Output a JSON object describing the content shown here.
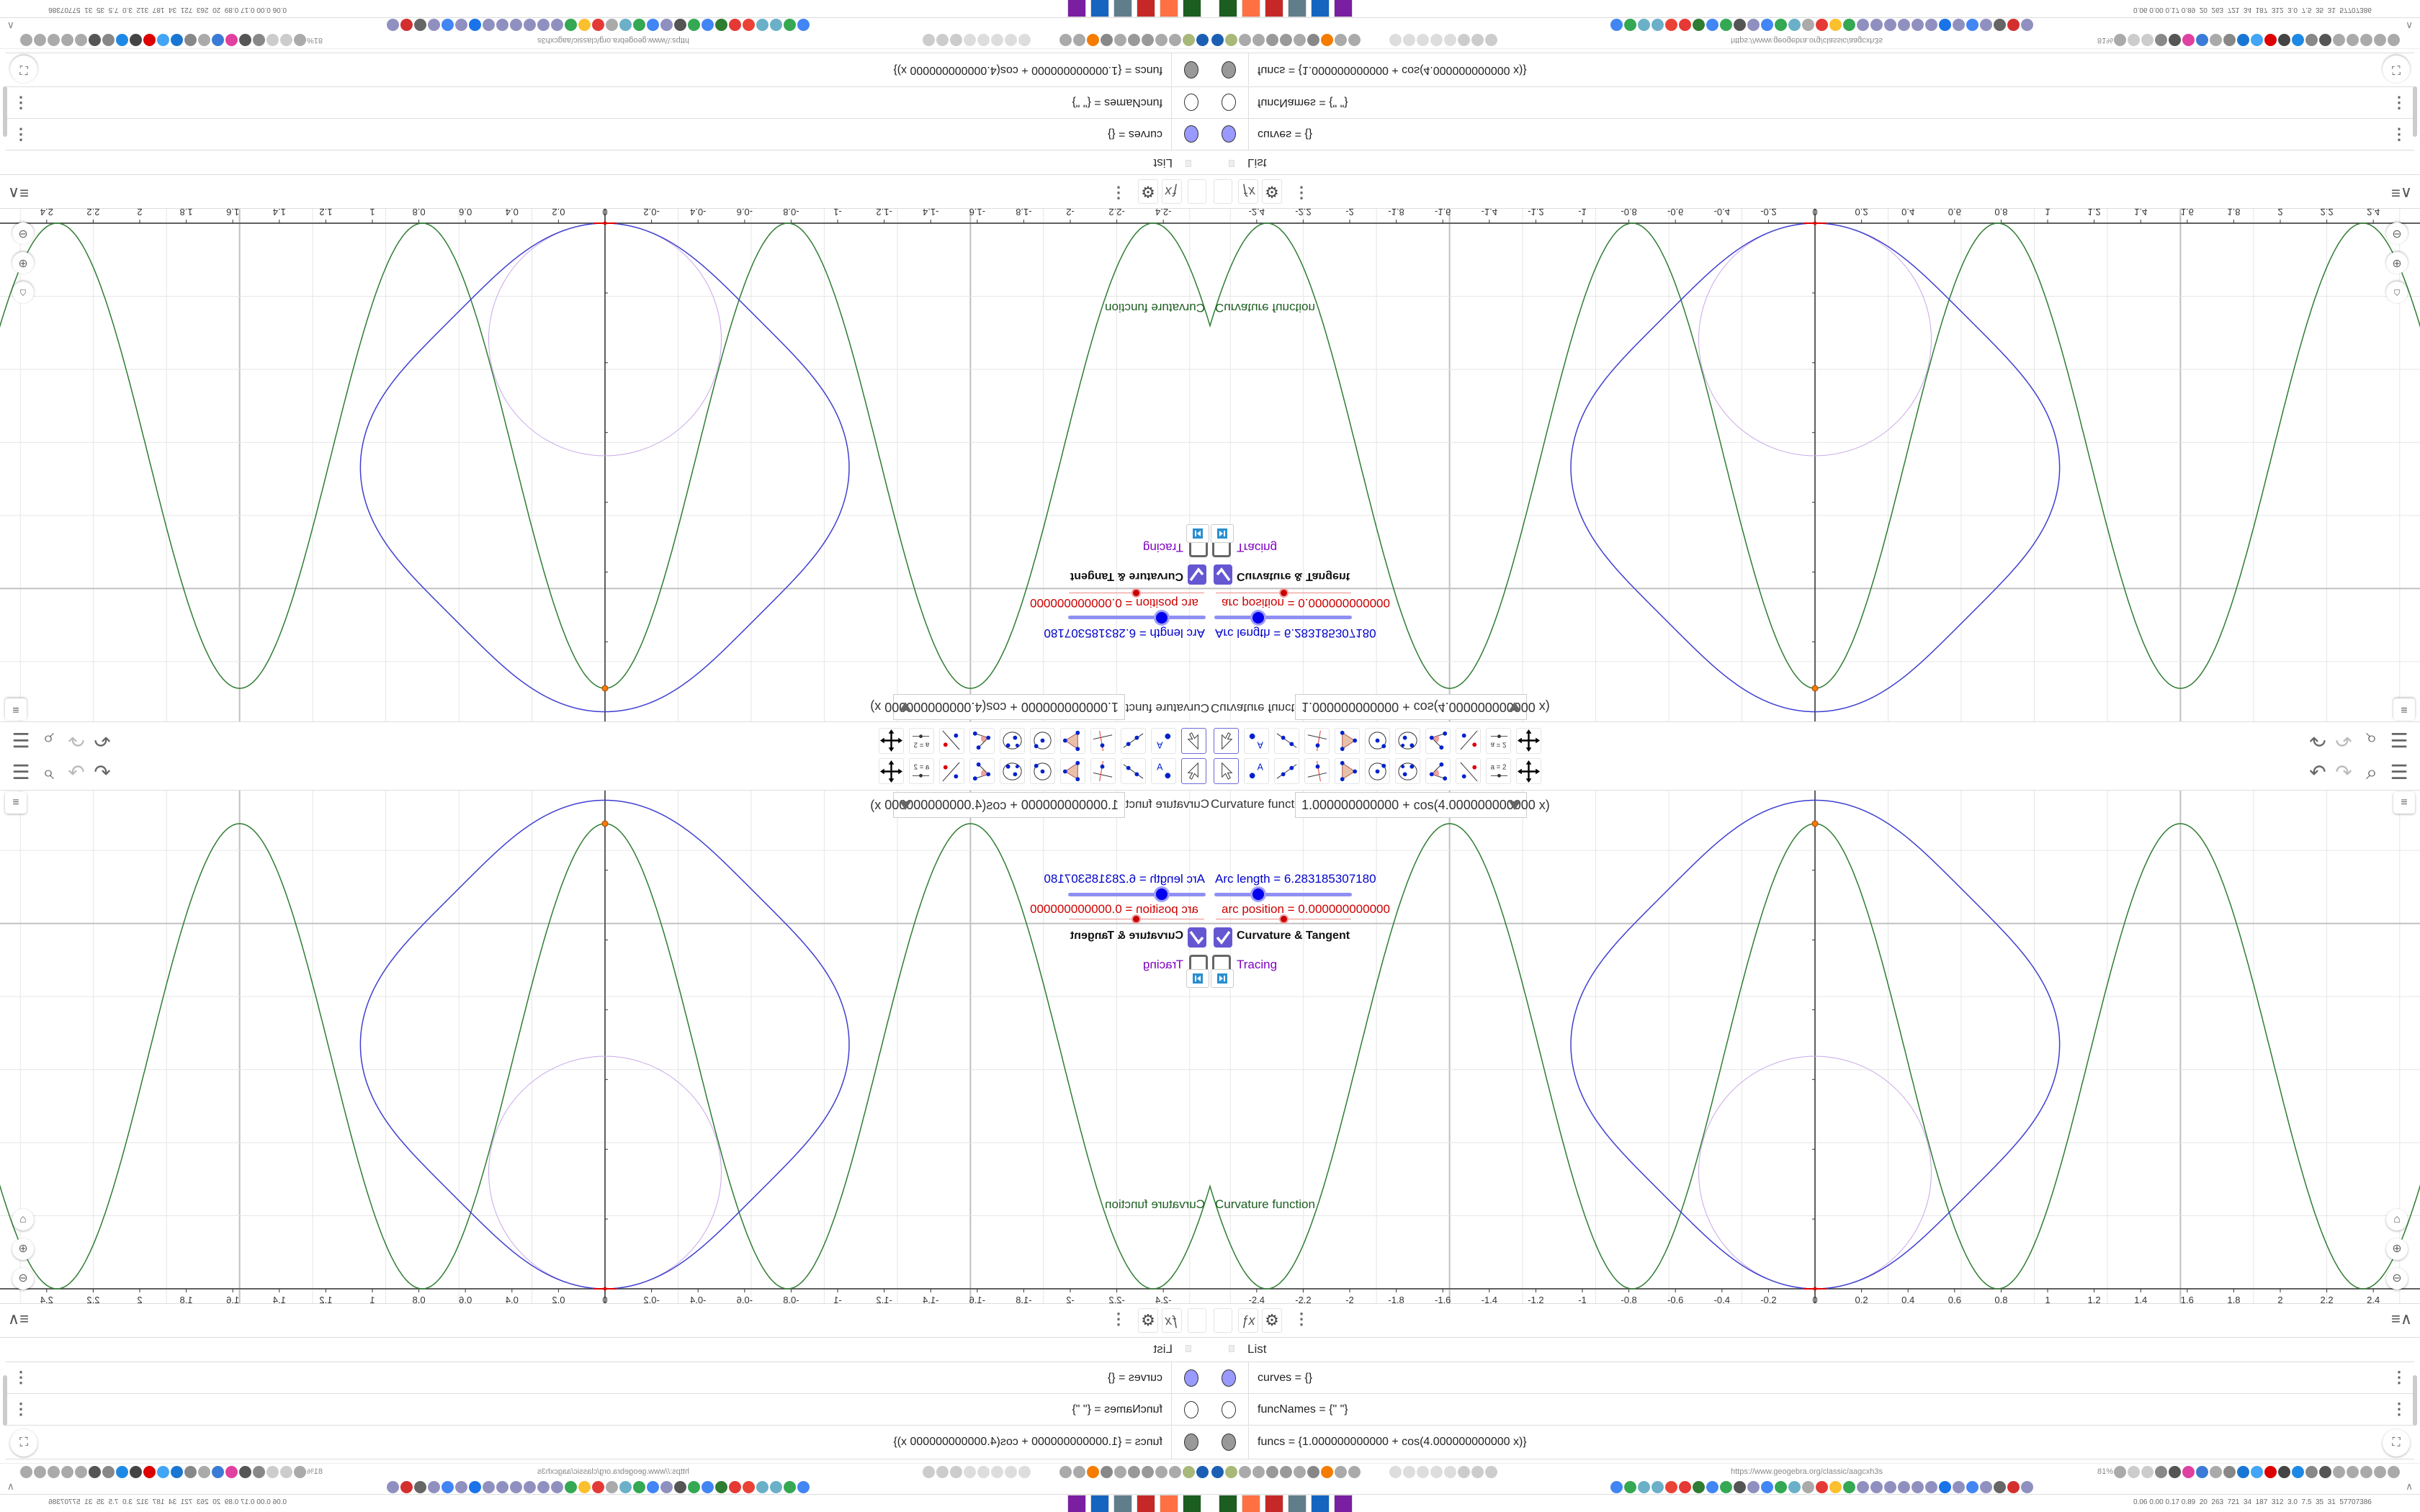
{
  "toolbar": {
    "tools": [
      {
        "name": "move-tool",
        "icon": "pointer-icon"
      },
      {
        "name": "point-tool",
        "icon": "point-icon",
        "label": "A"
      },
      {
        "name": "line-tool",
        "icon": "line-icon"
      },
      {
        "name": "perpendicular-line-tool",
        "icon": "perpendicular-icon"
      },
      {
        "name": "polygon-tool",
        "icon": "polygon-icon"
      },
      {
        "name": "circle-center-point-tool",
        "icon": "circle-icon"
      },
      {
        "name": "ellipse-tool",
        "icon": "ellipse-icon"
      },
      {
        "name": "angle-tool",
        "icon": "angle-icon"
      },
      {
        "name": "reflect-tool",
        "icon": "reflect-icon"
      },
      {
        "name": "slider-tool",
        "icon": "slider-icon",
        "label": "a = 2"
      },
      {
        "name": "move-graphics-tool",
        "icon": "move-graphics-icon"
      }
    ],
    "right": [
      "undo-icon",
      "redo-icon",
      "search-icon",
      "menu-icon"
    ]
  },
  "graphics": {
    "function_label": "Curvature function",
    "function_input": "1.000000000000 + cos(4.000000000000 x)",
    "arc_length_text": "Arc length = 6.283185307180",
    "arc_length_value": 6.28318530718,
    "arc_position_text": "arc position = 0.000000000000",
    "arc_position_value": 0,
    "curvature_tangent_label": "Curvature & Tangent",
    "curvature_tangent_checked": true,
    "tracing_label": "Tracing",
    "tracing_checked": false,
    "curve_label": "Curvature function",
    "x_ticks": [
      "-2.4",
      "-2.2",
      "-2",
      "-1.8",
      "-1.6",
      "-1.4",
      "-1.2",
      "-1",
      "-0.8",
      "-0.6",
      "-0.4",
      "-0.2",
      "0",
      "0.2",
      "0.4",
      "0.6",
      "0.8",
      "1",
      "1.2",
      "1.4",
      "1.6",
      "1.8",
      "2",
      "2.2",
      "2.4"
    ],
    "colors": {
      "curvature": "#2e7d32",
      "curve": "#3f3fd0",
      "circle": "#c8a8e8",
      "arc_length": "#0000cc",
      "arc_position": "#cc0000",
      "tracing": "#8000c0",
      "checkbox": "#6557d2"
    }
  },
  "chart_data": {
    "type": "line",
    "series": [
      {
        "name": "Curvature function",
        "expression": "1 + cos(4 x)"
      }
    ],
    "xlim": [
      -2.6,
      2.6
    ],
    "ylim": [
      -0.06,
      2.15
    ],
    "grid": true
  },
  "algebra": {
    "list_header": "List",
    "rows": [
      {
        "text": "curves = {}",
        "marker": "#9999ff"
      },
      {
        "text": "funcNames = {\"  \"}",
        "marker": "#ffffff"
      },
      {
        "text": "funcs  =  {1.000000000000 + cos(4.000000000000 x)}",
        "marker": "#999999"
      }
    ]
  },
  "browser": {
    "url": "https://www.geogebra.org/classic/aagcxh3s",
    "zoom": "81%",
    "tray_stats": "0.06 0.00 0.17 0.89  20  263  721  34  187  312  3.0  7.5  35  31  57707386"
  }
}
